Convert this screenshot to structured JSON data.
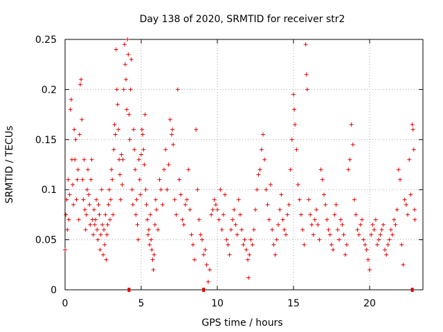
{
  "chart_data": {
    "type": "scatter",
    "title": "Day 138 of 2020, SRMTID for receiver str2",
    "xlabel": "GPS time / hours",
    "ylabel": "SRMTID / TECUs",
    "xlim": [
      0,
      23.5
    ],
    "ylim": [
      0,
      0.25
    ],
    "xticks": [
      0,
      5,
      10,
      15,
      20
    ],
    "xtick_labels": [
      "0",
      "5",
      "10",
      "15",
      "20"
    ],
    "yticks": [
      0,
      0.05,
      0.1,
      0.15,
      0.2,
      0.25
    ],
    "ytick_labels": [
      "0",
      "0.05",
      "0.1",
      "0.15",
      "0.2",
      "0.25"
    ],
    "grid": true,
    "marker": "plus",
    "series": [
      {
        "name": "SRMTID",
        "color": "#e00000",
        "points": [
          [
            0.0,
            0.04
          ],
          [
            0.05,
            0.075
          ],
          [
            0.1,
            0.09
          ],
          [
            0.15,
            0.06
          ],
          [
            0.2,
            0.11
          ],
          [
            0.25,
            0.07
          ],
          [
            0.3,
            0.095
          ],
          [
            0.35,
            0.18
          ],
          [
            0.4,
            0.19
          ],
          [
            0.45,
            0.13
          ],
          [
            0.5,
            0.105
          ],
          [
            0.55,
            0.085
          ],
          [
            0.6,
            0.16
          ],
          [
            0.65,
            0.13
          ],
          [
            0.7,
            0.15
          ],
          [
            0.75,
            0.09
          ],
          [
            0.8,
            0.11
          ],
          [
            0.85,
            0.12
          ],
          [
            0.9,
            0.07
          ],
          [
            0.95,
            0.155
          ],
          [
            1.0,
            0.205
          ],
          [
            1.05,
            0.21
          ],
          [
            1.1,
            0.17
          ],
          [
            1.15,
            0.11
          ],
          [
            1.2,
            0.09
          ],
          [
            1.25,
            0.13
          ],
          [
            1.3,
            0.08
          ],
          [
            1.35,
            0.06
          ],
          [
            1.4,
            0.075
          ],
          [
            1.45,
            0.1
          ],
          [
            1.5,
            0.12
          ],
          [
            1.55,
            0.095
          ],
          [
            1.6,
            0.085
          ],
          [
            1.65,
            0.065
          ],
          [
            1.7,
            0.11
          ],
          [
            1.75,
            0.13
          ],
          [
            1.8,
            0.07
          ],
          [
            1.85,
            0.055
          ],
          [
            1.9,
            0.08
          ],
          [
            1.95,
            0.065
          ],
          [
            2.0,
            0.07
          ],
          [
            2.05,
            0.09
          ],
          [
            2.1,
            0.06
          ],
          [
            2.15,
            0.05
          ],
          [
            2.2,
            0.085
          ],
          [
            2.25,
            0.075
          ],
          [
            2.3,
            0.04
          ],
          [
            2.35,
            0.055
          ],
          [
            2.4,
            0.1
          ],
          [
            2.45,
            0.065
          ],
          [
            2.5,
            0.035
          ],
          [
            2.55,
            0.06
          ],
          [
            2.6,
            0.045
          ],
          [
            2.65,
            0.075
          ],
          [
            2.7,
            0.03
          ],
          [
            2.75,
            0.055
          ],
          [
            2.8,
            0.065
          ],
          [
            2.85,
            0.085
          ],
          [
            2.9,
            0.1
          ],
          [
            2.95,
            0.07
          ],
          [
            3.0,
            0.09
          ],
          [
            3.05,
            0.12
          ],
          [
            3.1,
            0.11
          ],
          [
            3.15,
            0.075
          ],
          [
            3.2,
            0.14
          ],
          [
            3.25,
            0.165
          ],
          [
            3.3,
            0.155
          ],
          [
            3.35,
            0.24
          ],
          [
            3.4,
            0.2
          ],
          [
            3.45,
            0.185
          ],
          [
            3.5,
            0.16
          ],
          [
            3.55,
            0.13
          ],
          [
            3.6,
            0.115
          ],
          [
            3.65,
            0.09
          ],
          [
            3.7,
            0.135
          ],
          [
            3.75,
            0.105
          ],
          [
            3.8,
            0.13
          ],
          [
            3.85,
            0.2
          ],
          [
            3.9,
            0.245
          ],
          [
            3.95,
            0.225
          ],
          [
            4.0,
            0.21
          ],
          [
            4.05,
            0.18
          ],
          [
            4.1,
            0.25
          ],
          [
            4.15,
            0.235
          ],
          [
            4.2,
            0.175
          ],
          [
            4.25,
            0.15
          ],
          [
            4.3,
            0.2
          ],
          [
            4.35,
            0.23
          ],
          [
            4.4,
            0.1
          ],
          [
            4.45,
            0.085
          ],
          [
            4.5,
            0.16
          ],
          [
            4.55,
            0.14
          ],
          [
            4.6,
            0.12
          ],
          [
            4.65,
            0.075
          ],
          [
            4.7,
            0.09
          ],
          [
            4.75,
            0.065
          ],
          [
            4.8,
            0.05
          ],
          [
            4.85,
            0.13
          ],
          [
            4.9,
            0.11
          ],
          [
            4.95,
            0.095
          ],
          [
            5.0,
            0.135
          ],
          [
            5.05,
            0.16
          ],
          [
            5.1,
            0.155
          ],
          [
            5.15,
            0.14
          ],
          [
            5.2,
            0.125
          ],
          [
            5.25,
            0.175
          ],
          [
            5.3,
            0.1
          ],
          [
            5.35,
            0.085
          ],
          [
            5.4,
            0.07
          ],
          [
            5.45,
            0.055
          ],
          [
            5.5,
            0.06
          ],
          [
            5.55,
            0.045
          ],
          [
            5.6,
            0.075
          ],
          [
            5.65,
            0.05
          ],
          [
            5.7,
            0.04
          ],
          [
            5.75,
            0.03
          ],
          [
            5.8,
            0.02
          ],
          [
            5.85,
            0.035
          ],
          [
            5.9,
            0.065
          ],
          [
            5.95,
            0.09
          ],
          [
            6.0,
            0.08
          ],
          [
            6.1,
            0.06
          ],
          [
            6.2,
            0.11
          ],
          [
            6.3,
            0.1
          ],
          [
            6.4,
            0.085
          ],
          [
            6.5,
            0.12
          ],
          [
            6.6,
            0.14
          ],
          [
            6.7,
            0.1
          ],
          [
            6.8,
            0.125
          ],
          [
            6.9,
            0.17
          ],
          [
            7.0,
            0.155
          ],
          [
            7.05,
            0.16
          ],
          [
            7.1,
            0.145
          ],
          [
            7.2,
            0.09
          ],
          [
            7.3,
            0.075
          ],
          [
            7.4,
            0.2
          ],
          [
            7.5,
            0.11
          ],
          [
            7.6,
            0.095
          ],
          [
            7.7,
            0.07
          ],
          [
            7.8,
            0.065
          ],
          [
            7.9,
            0.085
          ],
          [
            8.0,
            0.09
          ],
          [
            8.1,
            0.12
          ],
          [
            8.2,
            0.08
          ],
          [
            8.3,
            0.055
          ],
          [
            8.4,
            0.045
          ],
          [
            8.5,
            0.03
          ],
          [
            8.6,
            0.16
          ],
          [
            8.7,
            0.1
          ],
          [
            8.8,
            0.07
          ],
          [
            8.9,
            0.055
          ],
          [
            9.0,
            0.05
          ],
          [
            9.1,
            0.035
          ],
          [
            9.2,
            0.04
          ],
          [
            9.3,
            0.025
          ],
          [
            9.4,
            0.008
          ],
          [
            9.5,
            0.02
          ],
          [
            9.6,
            0.075
          ],
          [
            9.7,
            0.08
          ],
          [
            9.8,
            0.09
          ],
          [
            9.9,
            0.085
          ],
          [
            10.0,
            0.08
          ],
          [
            10.1,
            0.07
          ],
          [
            10.2,
            0.1
          ],
          [
            10.3,
            0.06
          ],
          [
            10.4,
            0.075
          ],
          [
            10.5,
            0.095
          ],
          [
            10.6,
            0.05
          ],
          [
            10.7,
            0.045
          ],
          [
            10.8,
            0.035
          ],
          [
            10.9,
            0.06
          ],
          [
            11.0,
            0.07
          ],
          [
            11.1,
            0.08
          ],
          [
            11.2,
            0.065
          ],
          [
            11.3,
            0.055
          ],
          [
            11.4,
            0.09
          ],
          [
            11.5,
            0.075
          ],
          [
            11.6,
            0.06
          ],
          [
            11.7,
            0.045
          ],
          [
            11.8,
            0.05
          ],
          [
            11.9,
            0.04
          ],
          [
            12.0,
            0.03
          ],
          [
            12.05,
            0.012
          ],
          [
            12.1,
            0.035
          ],
          [
            12.2,
            0.05
          ],
          [
            12.3,
            0.045
          ],
          [
            12.4,
            0.06
          ],
          [
            12.5,
            0.08
          ],
          [
            12.6,
            0.1
          ],
          [
            12.7,
            0.115
          ],
          [
            12.8,
            0.12
          ],
          [
            12.9,
            0.14
          ],
          [
            13.0,
            0.155
          ],
          [
            13.1,
            0.13
          ],
          [
            13.2,
            0.1
          ],
          [
            13.3,
            0.085
          ],
          [
            13.4,
            0.07
          ],
          [
            13.5,
            0.105
          ],
          [
            13.6,
            0.06
          ],
          [
            13.7,
            0.045
          ],
          [
            13.8,
            0.035
          ],
          [
            13.9,
            0.05
          ],
          [
            14.0,
            0.065
          ],
          [
            14.1,
            0.08
          ],
          [
            14.2,
            0.095
          ],
          [
            14.3,
            0.07
          ],
          [
            14.4,
            0.06
          ],
          [
            14.5,
            0.055
          ],
          [
            14.6,
            0.075
          ],
          [
            14.7,
            0.085
          ],
          [
            14.8,
            0.12
          ],
          [
            14.9,
            0.15
          ],
          [
            15.0,
            0.195
          ],
          [
            15.05,
            0.18
          ],
          [
            15.1,
            0.165
          ],
          [
            15.2,
            0.14
          ],
          [
            15.3,
            0.105
          ],
          [
            15.4,
            0.09
          ],
          [
            15.5,
            0.075
          ],
          [
            15.6,
            0.06
          ],
          [
            15.7,
            0.045
          ],
          [
            15.8,
            0.245
          ],
          [
            15.85,
            0.215
          ],
          [
            15.9,
            0.2
          ],
          [
            16.0,
            0.09
          ],
          [
            16.1,
            0.075
          ],
          [
            16.2,
            0.065
          ],
          [
            16.3,
            0.055
          ],
          [
            16.4,
            0.07
          ],
          [
            16.5,
            0.08
          ],
          [
            16.6,
            0.065
          ],
          [
            16.7,
            0.05
          ],
          [
            16.8,
            0.12
          ],
          [
            16.9,
            0.11
          ],
          [
            17.0,
            0.095
          ],
          [
            17.1,
            0.085
          ],
          [
            17.2,
            0.07
          ],
          [
            17.3,
            0.06
          ],
          [
            17.4,
            0.055
          ],
          [
            17.5,
            0.045
          ],
          [
            17.6,
            0.04
          ],
          [
            17.7,
            0.075
          ],
          [
            17.8,
            0.085
          ],
          [
            17.9,
            0.06
          ],
          [
            18.0,
            0.05
          ],
          [
            18.1,
            0.07
          ],
          [
            18.2,
            0.065
          ],
          [
            18.3,
            0.055
          ],
          [
            18.4,
            0.035
          ],
          [
            18.5,
            0.045
          ],
          [
            18.6,
            0.12
          ],
          [
            18.7,
            0.13
          ],
          [
            18.8,
            0.165
          ],
          [
            18.9,
            0.145
          ],
          [
            19.0,
            0.09
          ],
          [
            19.1,
            0.075
          ],
          [
            19.2,
            0.06
          ],
          [
            19.3,
            0.055
          ],
          [
            19.4,
            0.065
          ],
          [
            19.5,
            0.07
          ],
          [
            19.6,
            0.05
          ],
          [
            19.7,
            0.045
          ],
          [
            19.8,
            0.04
          ],
          [
            19.9,
            0.03
          ],
          [
            20.0,
            0.02
          ],
          [
            20.1,
            0.055
          ],
          [
            20.2,
            0.065
          ],
          [
            20.3,
            0.06
          ],
          [
            20.4,
            0.07
          ],
          [
            20.5,
            0.045
          ],
          [
            20.6,
            0.05
          ],
          [
            20.7,
            0.055
          ],
          [
            20.8,
            0.06
          ],
          [
            20.9,
            0.065
          ],
          [
            21.0,
            0.04
          ],
          [
            21.1,
            0.035
          ],
          [
            21.2,
            0.045
          ],
          [
            21.3,
            0.05
          ],
          [
            21.4,
            0.06
          ],
          [
            21.5,
            0.055
          ],
          [
            21.6,
            0.07
          ],
          [
            21.7,
            0.065
          ],
          [
            21.8,
            0.08
          ],
          [
            21.9,
            0.12
          ],
          [
            22.0,
            0.11
          ],
          [
            22.1,
            0.045
          ],
          [
            22.2,
            0.025
          ],
          [
            22.3,
            0.09
          ],
          [
            22.4,
            0.085
          ],
          [
            22.5,
            0.075
          ],
          [
            22.6,
            0.13
          ],
          [
            22.7,
            0.095
          ],
          [
            22.8,
            0.165
          ],
          [
            22.85,
            0.16
          ],
          [
            22.9,
            0.14
          ],
          [
            22.95,
            0.08
          ],
          [
            22.97,
            0.07
          ]
        ]
      }
    ],
    "zero_points_x": [
      4.2,
      9.1,
      22.8
    ]
  }
}
